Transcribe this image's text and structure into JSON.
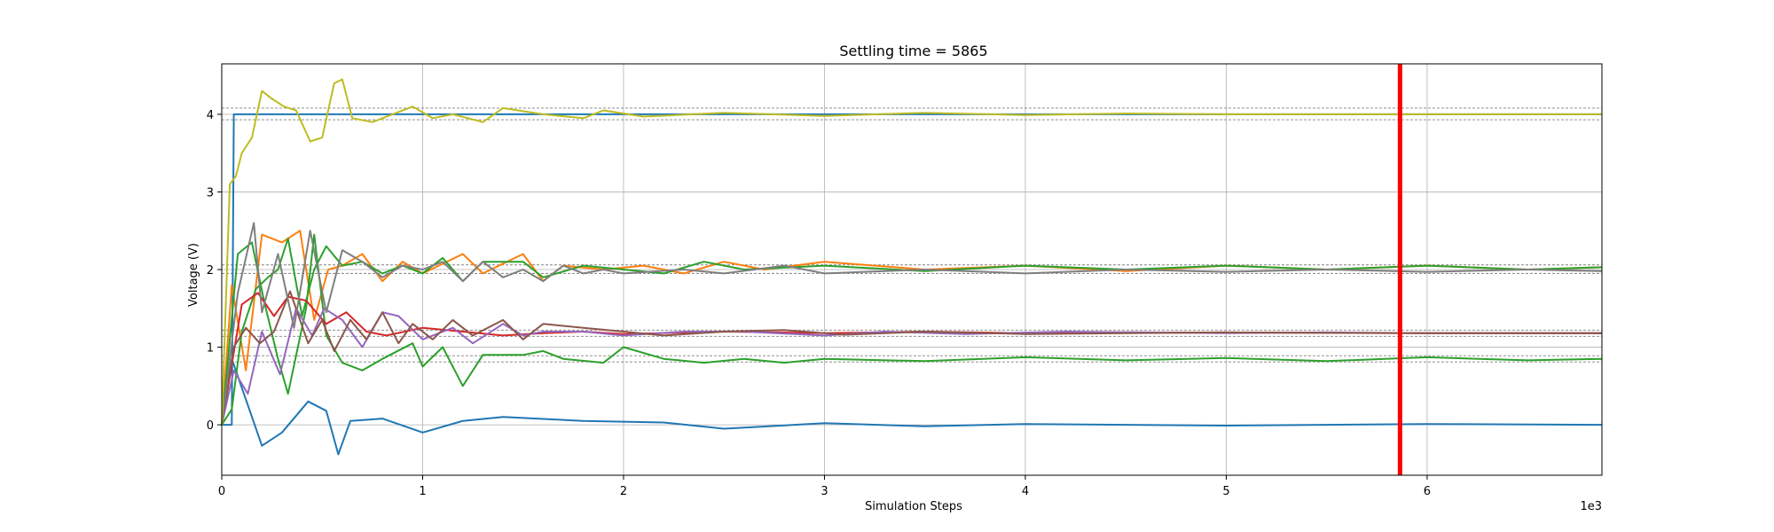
{
  "chart_data": {
    "type": "line",
    "title": "Settling time = 5865",
    "xlabel": "Simulation Steps",
    "ylabel": "Voltage (V)",
    "x_offset_label": "1e3",
    "xlim": [
      0,
      6870
    ],
    "ylim": [
      -0.65,
      4.65
    ],
    "x_ticks": [
      0,
      1000,
      2000,
      3000,
      4000,
      5000,
      6000
    ],
    "x_tick_labels": [
      "0",
      "1",
      "2",
      "3",
      "4",
      "5",
      "6"
    ],
    "y_ticks": [
      0,
      1,
      2,
      3,
      4
    ],
    "y_tick_labels": [
      "0",
      "1",
      "2",
      "3",
      "4"
    ],
    "grid": true,
    "settling_time": 5865,
    "settling_line_color": "#ff0000",
    "tolerance_color": "#808080",
    "tolerance_bands": [
      {
        "target": 4.0,
        "lower": 3.93,
        "upper": 4.08
      },
      {
        "target": 2.0,
        "lower": 1.95,
        "upper": 2.06
      },
      {
        "target": 1.18,
        "lower": 1.14,
        "upper": 1.22
      },
      {
        "target": 0.85,
        "lower": 0.81,
        "upper": 0.89
      }
    ],
    "series": [
      {
        "color": "#1f77b4",
        "x": [
          0,
          50,
          60,
          6870
        ],
        "y": [
          0,
          0,
          4.0,
          4.0
        ]
      },
      {
        "color": "#1f77b4",
        "x": [
          0,
          50,
          200,
          300,
          430,
          520,
          580,
          640,
          800,
          1000,
          1200,
          1400,
          1800,
          2200,
          2500,
          3000,
          3500,
          4000,
          5000,
          6000,
          6870
        ],
        "y": [
          0,
          0.85,
          -0.27,
          -0.1,
          0.3,
          0.18,
          -0.38,
          0.05,
          0.08,
          -0.1,
          0.05,
          0.1,
          0.05,
          0.03,
          -0.05,
          0.02,
          -0.02,
          0.01,
          -0.01,
          0.01,
          0.0
        ]
      },
      {
        "color": "#ff7f0e",
        "x": [
          0,
          50,
          120,
          200,
          300,
          390,
          460,
          530,
          600,
          700,
          800,
          900,
          1000,
          1200,
          1300,
          1500,
          1600,
          1700,
          1900,
          2100,
          2300,
          2500,
          2700,
          3000,
          3500,
          4000,
          4500,
          5000,
          5500,
          6000,
          6500,
          6870
        ],
        "y": [
          0,
          1.8,
          0.7,
          2.45,
          2.35,
          2.5,
          1.35,
          2.0,
          2.05,
          2.2,
          1.85,
          2.1,
          1.95,
          2.2,
          1.95,
          2.2,
          1.85,
          2.05,
          2.0,
          2.05,
          1.95,
          2.1,
          2.0,
          2.1,
          2.0,
          2.05,
          1.98,
          2.05,
          2.0,
          2.05,
          2.0,
          2.03
        ]
      },
      {
        "color": "#2ca02c",
        "x": [
          0,
          80,
          150,
          210,
          280,
          330,
          420,
          460,
          520,
          600,
          700,
          800,
          950,
          1000,
          1100,
          1200,
          1300,
          1500,
          1600,
          1700,
          1900,
          2000,
          2200,
          2400,
          2600,
          2800,
          3000,
          3500,
          4000,
          4500,
          5000,
          5500,
          6000,
          6500,
          6870
        ],
        "y": [
          0,
          2.2,
          2.35,
          1.6,
          0.85,
          0.4,
          1.5,
          2.45,
          1.15,
          0.8,
          0.7,
          0.85,
          1.05,
          0.75,
          1.0,
          0.5,
          0.9,
          0.9,
          0.95,
          0.85,
          0.8,
          1.0,
          0.85,
          0.8,
          0.85,
          0.8,
          0.85,
          0.82,
          0.87,
          0.83,
          0.86,
          0.82,
          0.87,
          0.83,
          0.85
        ]
      },
      {
        "color": "#2ca02c",
        "x": [
          0,
          50,
          100,
          170,
          230,
          280,
          330,
          400,
          460,
          520,
          600,
          700,
          800,
          900,
          1000,
          1100,
          1200,
          1300,
          1500,
          1600,
          1800,
          2000,
          2200,
          2400,
          2600,
          3000,
          3500,
          4000,
          4500,
          5000,
          5500,
          6000,
          6500,
          6870
        ],
        "y": [
          0,
          0.2,
          1.2,
          1.75,
          1.9,
          2.0,
          2.4,
          1.4,
          2.0,
          2.3,
          2.05,
          2.1,
          1.95,
          2.05,
          1.95,
          2.15,
          1.85,
          2.1,
          2.1,
          1.9,
          2.05,
          2.0,
          1.95,
          2.1,
          2.0,
          2.05,
          1.98,
          2.05,
          2.0,
          2.05,
          2.0,
          2.05,
          2.0,
          2.03
        ]
      },
      {
        "color": "#d62728",
        "x": [
          0,
          100,
          180,
          260,
          330,
          420,
          520,
          620,
          720,
          820,
          1000,
          1200,
          1400,
          1600,
          1800,
          2000,
          2500,
          3000,
          3500,
          4000,
          5000,
          6000,
          6870
        ],
        "y": [
          0,
          1.55,
          1.7,
          1.4,
          1.65,
          1.6,
          1.3,
          1.45,
          1.2,
          1.15,
          1.25,
          1.2,
          1.15,
          1.18,
          1.2,
          1.17,
          1.2,
          1.18,
          1.2,
          1.18,
          1.19,
          1.18,
          1.18
        ]
      },
      {
        "color": "#9467bd",
        "x": [
          0,
          60,
          130,
          200,
          290,
          370,
          450,
          510,
          600,
          700,
          800,
          880,
          1000,
          1150,
          1250,
          1400,
          1500,
          1600,
          1800,
          2000,
          2300,
          2600,
          3000,
          3300,
          3700,
          4200,
          5000,
          5500,
          6000,
          6870
        ],
        "y": [
          0,
          0.7,
          0.4,
          1.2,
          0.65,
          1.5,
          1.15,
          1.5,
          1.35,
          1.0,
          1.45,
          1.4,
          1.1,
          1.25,
          1.05,
          1.3,
          1.15,
          1.2,
          1.2,
          1.15,
          1.2,
          1.2,
          1.15,
          1.2,
          1.17,
          1.2,
          1.18,
          1.19,
          1.18,
          1.18
        ]
      },
      {
        "color": "#8c564b",
        "x": [
          0,
          60,
          120,
          190,
          260,
          340,
          430,
          500,
          560,
          640,
          720,
          800,
          880,
          950,
          1050,
          1150,
          1250,
          1400,
          1500,
          1600,
          1800,
          2000,
          2200,
          2500,
          2800,
          3100,
          3500,
          4000,
          5000,
          6000,
          6870
        ],
        "y": [
          0,
          1.0,
          1.25,
          1.05,
          1.2,
          1.72,
          1.05,
          1.35,
          0.95,
          1.35,
          1.1,
          1.45,
          1.05,
          1.3,
          1.1,
          1.35,
          1.15,
          1.35,
          1.1,
          1.3,
          1.25,
          1.2,
          1.15,
          1.2,
          1.22,
          1.16,
          1.2,
          1.17,
          1.19,
          1.18,
          1.18
        ]
      },
      {
        "color": "#7f7f7f",
        "x": [
          0,
          80,
          160,
          200,
          280,
          360,
          440,
          520,
          600,
          700,
          800,
          900,
          1000,
          1100,
          1200,
          1300,
          1400,
          1500,
          1600,
          1700,
          1800,
          1900,
          2000,
          2300,
          2500,
          2800,
          3000,
          3500,
          4000,
          4500,
          5000,
          5500,
          6000,
          6500,
          6870
        ],
        "y": [
          0,
          1.7,
          2.6,
          1.45,
          2.2,
          1.25,
          2.5,
          1.45,
          2.25,
          2.1,
          1.9,
          2.05,
          2.0,
          2.1,
          1.85,
          2.1,
          1.9,
          2.0,
          1.85,
          2.05,
          1.95,
          2.0,
          1.95,
          2.0,
          1.95,
          2.05,
          1.95,
          2.0,
          1.95,
          2.0,
          1.97,
          2.0,
          1.97,
          2.0,
          1.98
        ]
      },
      {
        "color": "#bcbd22",
        "x": [
          0,
          40,
          70,
          100,
          150,
          200,
          250,
          310,
          370,
          440,
          500,
          560,
          600,
          650,
          750,
          850,
          950,
          1050,
          1150,
          1300,
          1400,
          1600,
          1800,
          1900,
          2100,
          2500,
          3000,
          3500,
          4000,
          4500,
          5000,
          6000,
          6870
        ],
        "y": [
          0,
          3.1,
          3.2,
          3.5,
          3.7,
          4.3,
          4.2,
          4.1,
          4.05,
          3.65,
          3.7,
          4.4,
          4.45,
          3.95,
          3.9,
          4.0,
          4.1,
          3.95,
          4.0,
          3.9,
          4.08,
          4.0,
          3.95,
          4.05,
          3.97,
          4.02,
          3.98,
          4.02,
          3.99,
          4.01,
          4.0,
          4.0,
          4.0
        ]
      }
    ]
  }
}
